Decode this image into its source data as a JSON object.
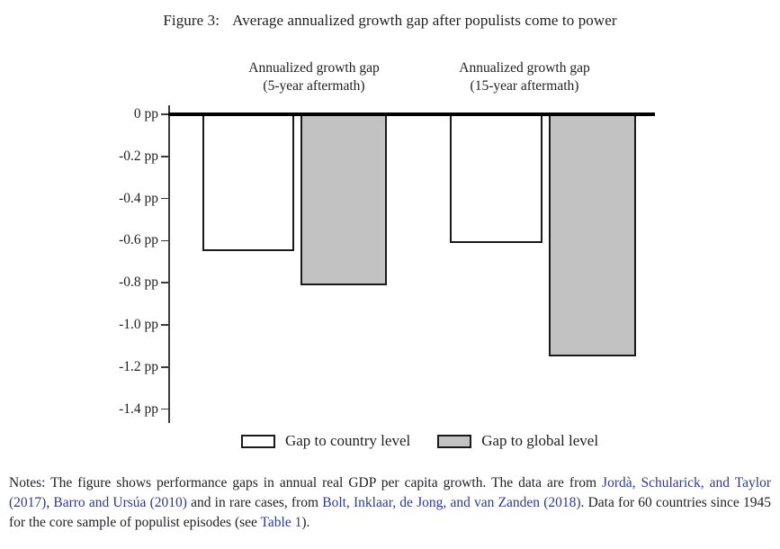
{
  "figure": {
    "label": "Figure 3:",
    "caption": "Average annualized growth gap after populists come to power"
  },
  "chart_data": {
    "type": "bar",
    "orientation": "vertical",
    "title": "Average annualized growth gap after populists come to power",
    "unit": "pp",
    "ylim": [
      -1.4,
      0
    ],
    "ytick_values": [
      0,
      -0.2,
      -0.4,
      -0.6,
      -0.8,
      -1.0,
      -1.2,
      -1.4
    ],
    "ytick_labels": [
      "0 pp",
      "-0.2 pp",
      "-0.4 pp",
      "-0.6 pp",
      "-0.8 pp",
      "-1.0 pp",
      "-1.2 pp",
      "-1.4 pp"
    ],
    "grid": false,
    "legend_position": "bottom",
    "groups": [
      {
        "id": "5yr",
        "title_line1": "Annualized growth gap",
        "title_line2": "(5-year aftermath)"
      },
      {
        "id": "15yr",
        "title_line1": "Annualized growth gap",
        "title_line2": "(15-year aftermath)"
      }
    ],
    "series": [
      {
        "name": "Gap to country level",
        "fill": "#ffffff",
        "values": [
          -0.65,
          -0.61
        ]
      },
      {
        "name": "Gap to global level",
        "fill": "#c2c2c2",
        "values": [
          -0.81,
          -1.15
        ]
      }
    ]
  },
  "legend": {
    "items": [
      {
        "label": "Gap to country level",
        "fill": "#ffffff"
      },
      {
        "label": "Gap to global level",
        "fill": "#c2c2c2"
      }
    ]
  },
  "notes": {
    "segments": [
      {
        "text": "Notes: The figure shows performance gaps in annual real GDP per capita growth. The data are from ",
        "link": false
      },
      {
        "text": "Jordà, Schularick, and Taylor (2017)",
        "link": true
      },
      {
        "text": ", ",
        "link": false
      },
      {
        "text": "Barro and Ursúa (2010)",
        "link": true
      },
      {
        "text": " and in rare cases, from ",
        "link": false
      },
      {
        "text": "Bolt, Inklaar, de Jong, and van Zanden (2018)",
        "link": true
      },
      {
        "text": ". Data for 60 countries since 1945 for the core sample of populist episodes (see ",
        "link": false
      },
      {
        "text": "Table 1",
        "link": true
      },
      {
        "text": ").",
        "link": false
      }
    ]
  },
  "colors": {
    "bar_border": "#1a1a1a",
    "bar_gray": "#c2c2c2",
    "bar_white": "#ffffff",
    "axis": "#3d3d3d",
    "zero_line": "#000000",
    "link": "#2e3a8e",
    "text": "#1f1f1f"
  }
}
